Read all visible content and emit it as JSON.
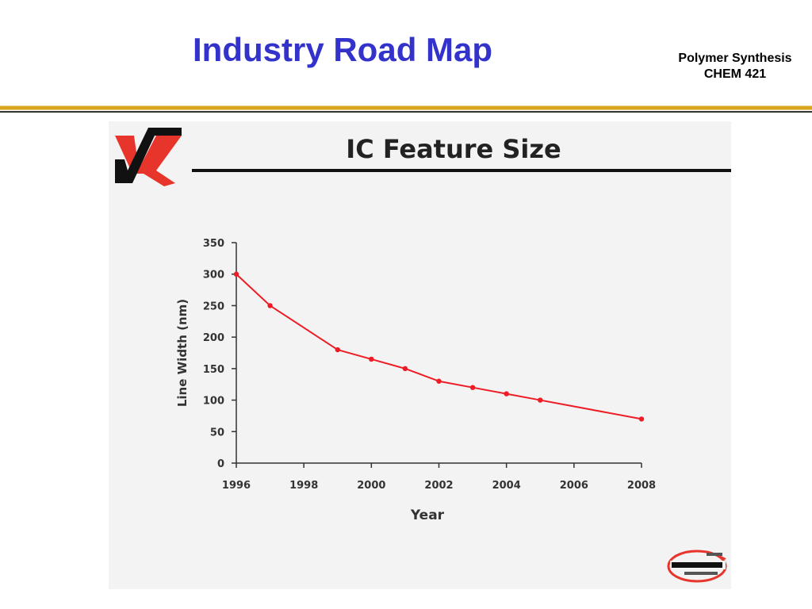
{
  "slide": {
    "title": "Industry Road Map",
    "course_line1": "Polymer Synthesis",
    "course_line2": "CHEM 421"
  },
  "colors": {
    "title": "#3333cc",
    "divider_gold": "#d9a520",
    "divider_dark": "#333333",
    "series": "#ee1c25",
    "logo_red": "#e8352c",
    "logo_black": "#111111"
  },
  "logos": {
    "top_left_icon": "vk-logo-icon",
    "bottom_right_icon": "your-complete-connection-logo-icon"
  },
  "chart_data": {
    "type": "line",
    "title": "IC Feature Size",
    "xlabel": "Year",
    "ylabel": "Line Width (nm)",
    "xlim": [
      1996,
      2008
    ],
    "ylim": [
      0,
      350
    ],
    "xticks": [
      1996,
      1998,
      2000,
      2002,
      2004,
      2006,
      2008
    ],
    "yticks": [
      0,
      50,
      100,
      150,
      200,
      250,
      300,
      350
    ],
    "grid": false,
    "series": [
      {
        "x": [
          1996,
          1997,
          1999,
          2000,
          2001,
          2002,
          2003,
          2004,
          2005,
          2008
        ],
        "values": [
          300,
          250,
          180,
          165,
          150,
          130,
          120,
          110,
          100,
          70
        ]
      }
    ]
  }
}
